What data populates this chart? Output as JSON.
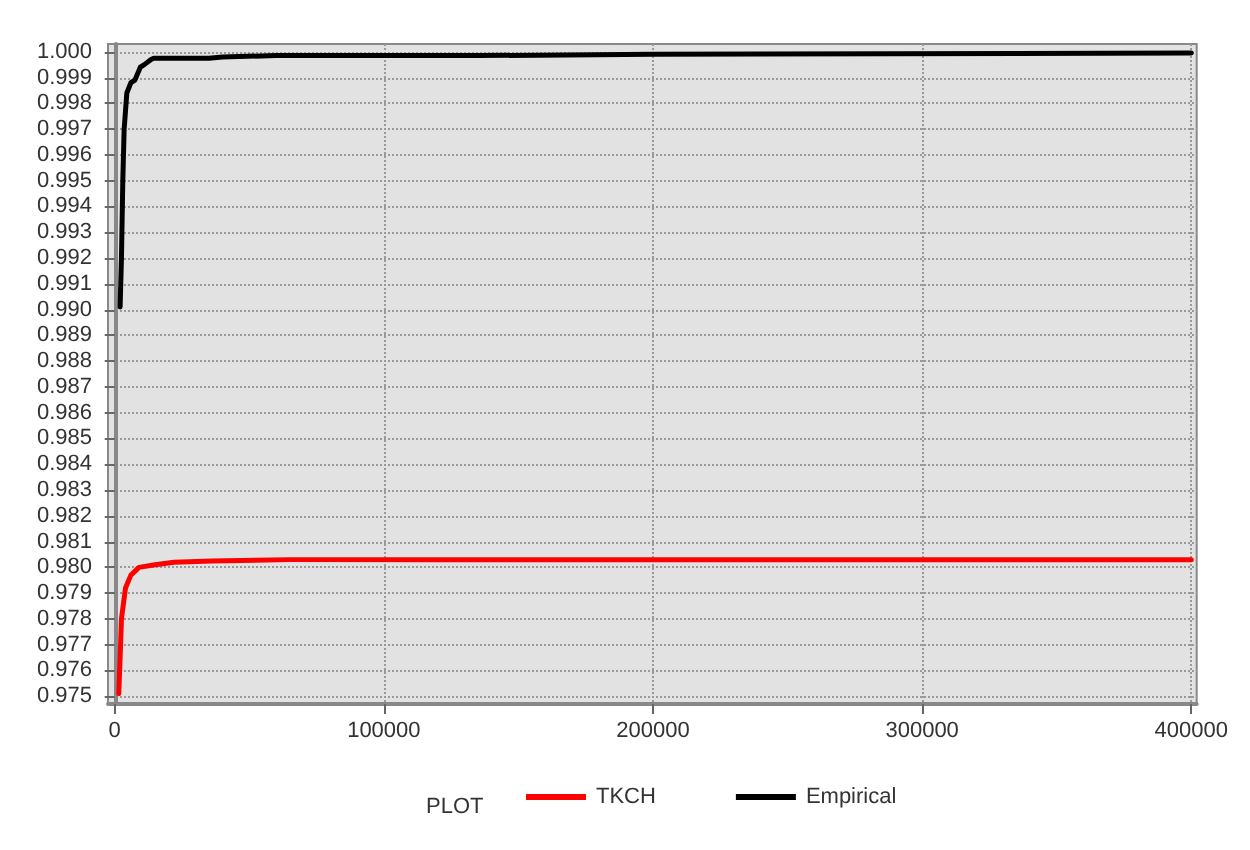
{
  "chart_data": {
    "type": "line",
    "legend_title": "PLOT",
    "legend": "bottom",
    "grid": true,
    "marker": "none",
    "line_style": "solid",
    "xlim": [
      -2500,
      402000
    ],
    "xticks": [
      0,
      100000,
      200000,
      300000,
      400000
    ],
    "ylim": [
      0.9747,
      1.0003
    ],
    "yticks": [
      {
        "value": 0.975,
        "label": "0.975"
      },
      {
        "value": 0.976,
        "label": "0.976"
      },
      {
        "value": 0.977,
        "label": "0.977"
      },
      {
        "value": 0.978,
        "label": "0.978"
      },
      {
        "value": 0.979,
        "label": "0.979"
      },
      {
        "value": 0.98,
        "label": "0.980"
      },
      {
        "value": 0.981,
        "label": "0.981"
      },
      {
        "value": 0.982,
        "label": "0.982"
      },
      {
        "value": 0.983,
        "label": "0.983"
      },
      {
        "value": 0.984,
        "label": "0.984"
      },
      {
        "value": 0.985,
        "label": "0.985"
      },
      {
        "value": 0.986,
        "label": "0.986"
      },
      {
        "value": 0.987,
        "label": "0.987"
      },
      {
        "value": 0.988,
        "label": "0.988"
      },
      {
        "value": 0.989,
        "label": "0.989"
      },
      {
        "value": 0.99,
        "label": "0.990"
      },
      {
        "value": 0.991,
        "label": "0.991"
      },
      {
        "value": 0.992,
        "label": "0.992"
      },
      {
        "value": 0.993,
        "label": "0.993"
      },
      {
        "value": 0.994,
        "label": "0.994"
      },
      {
        "value": 0.995,
        "label": "0.995"
      },
      {
        "value": 0.996,
        "label": "0.996"
      },
      {
        "value": 0.997,
        "label": "0.997"
      },
      {
        "value": 0.998,
        "label": "0.998"
      },
      {
        "value": 0.999,
        "label": "0.999"
      },
      {
        "value": 1,
        "label": "1.000"
      }
    ],
    "series": [
      {
        "name": "TKCH",
        "color": "#ff0000",
        "x": [
          1500,
          2000,
          2500,
          4000,
          6000,
          9000,
          15000,
          22000,
          36000,
          65000,
          120000,
          400000
        ],
        "values": [
          0.9751,
          0.9765,
          0.978,
          0.9792,
          0.9797,
          0.98,
          0.9801,
          0.9802,
          0.98025,
          0.9803,
          0.9803,
          0.9803
        ]
      },
      {
        "name": "Empirical",
        "color": "#000000",
        "x": [
          2000,
          2500,
          3000,
          3500,
          4500,
          6000,
          7500,
          9500,
          11000,
          13500,
          14500,
          35000,
          40000,
          60000,
          135000,
          200000,
          400000
        ],
        "values": [
          0.9901,
          0.992,
          0.995,
          0.997,
          0.9984,
          0.9988,
          0.9989,
          0.9994,
          0.9995,
          0.9997,
          0.99975,
          0.99975,
          0.9998,
          0.99985,
          0.99985,
          0.9999,
          0.99995
        ]
      }
    ]
  }
}
